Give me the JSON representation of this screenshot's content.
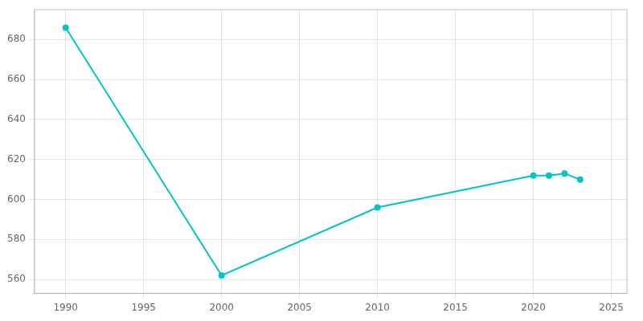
{
  "chart_data": {
    "type": "line",
    "x": [
      1990,
      2000,
      2010,
      2020,
      2021,
      2022,
      2023
    ],
    "values": [
      686,
      562,
      596,
      612,
      612,
      613,
      610
    ],
    "color": "#00C5C8",
    "marker": "circle",
    "xlim": [
      1988,
      2026
    ],
    "ylim": [
      553,
      695
    ],
    "xticks": [
      1990,
      1995,
      2000,
      2005,
      2010,
      2015,
      2020,
      2025
    ],
    "yticks": [
      560,
      580,
      600,
      620,
      640,
      660,
      680
    ],
    "grid": true
  }
}
